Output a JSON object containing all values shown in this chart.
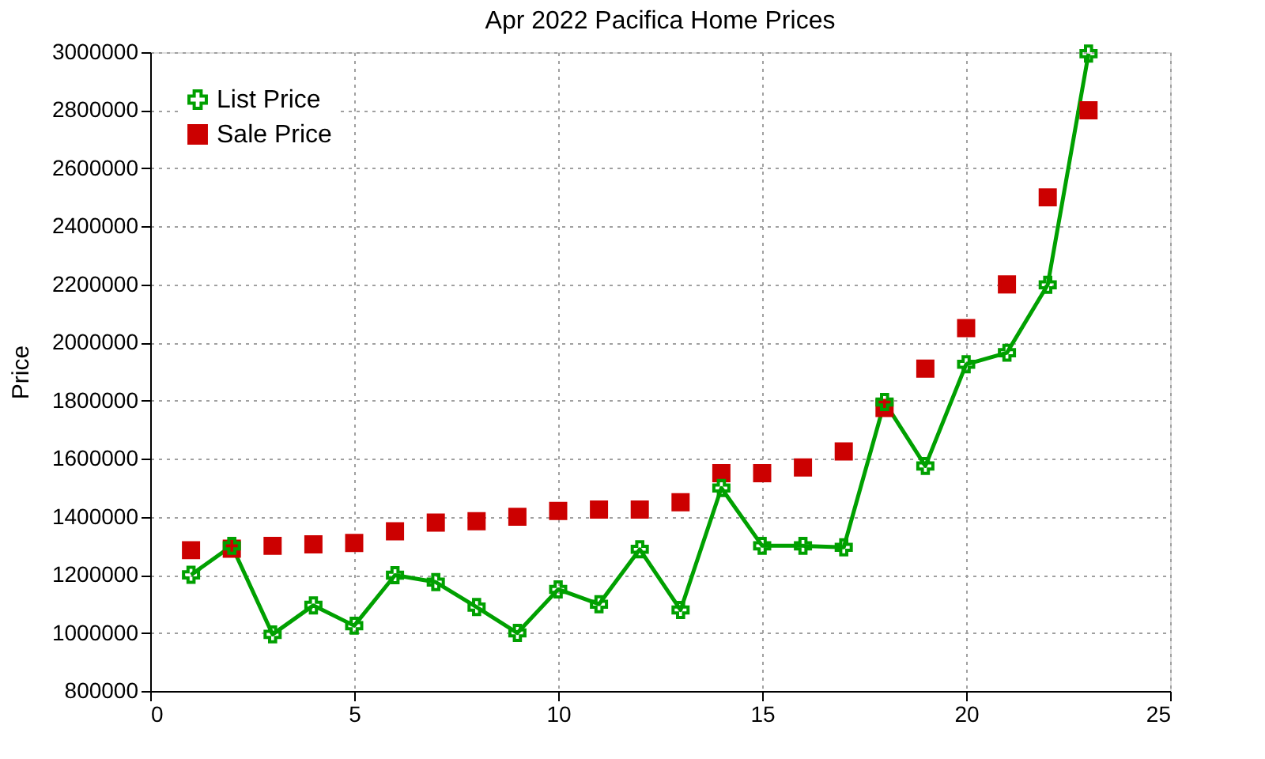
{
  "chart_data": {
    "type": "line",
    "title": "Apr 2022 Pacifica Home Prices",
    "ylabel": "Price",
    "x": [
      1,
      2,
      3,
      4,
      5,
      6,
      7,
      8,
      9,
      10,
      11,
      12,
      13,
      14,
      15,
      16,
      17,
      18,
      19,
      20,
      21,
      22,
      23
    ],
    "series": [
      {
        "name": "List Price",
        "marker": "cross",
        "line_style": "solid",
        "color": "#00a000",
        "values": [
          1200000,
          1300000,
          995000,
          1095000,
          1025000,
          1199000,
          1175000,
          1089000,
          1000000,
          1150000,
          1099000,
          1288000,
          1079000,
          1499000,
          1300000,
          1300000,
          1295000,
          1795000,
          1575000,
          1925000,
          1965000,
          2199000,
          2995000
        ]
      },
      {
        "name": "Sale Price",
        "type": "scatter",
        "marker": "square",
        "color": "#cc0000",
        "values": [
          1285000,
          1290000,
          1300000,
          1305000,
          1310000,
          1350000,
          1380000,
          1385000,
          1400000,
          1420000,
          1425000,
          1425000,
          1450000,
          1550000,
          1550000,
          1570000,
          1625000,
          1775000,
          1910000,
          2050000,
          2200000,
          2500000,
          2800000
        ]
      }
    ],
    "xlim": [
      0,
      25
    ],
    "xticks": [
      0,
      5,
      10,
      15,
      20,
      25
    ],
    "ylim": [
      800000,
      3000000
    ],
    "yticks": [
      800000,
      1000000,
      1200000,
      1400000,
      1600000,
      1800000,
      2000000,
      2200000,
      2400000,
      2600000,
      2800000,
      3000000
    ],
    "grid": true,
    "legend": "top left"
  }
}
